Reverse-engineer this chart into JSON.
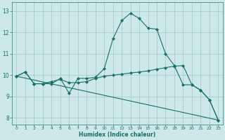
{
  "xlabel": "Humidex (Indice chaleur)",
  "bg_color": "#cce8e8",
  "grid_color": "#aacccc",
  "line_color": "#1a6e6a",
  "xlim": [
    -0.5,
    23.5
  ],
  "ylim": [
    7.7,
    13.4
  ],
  "xticks": [
    0,
    1,
    2,
    3,
    4,
    5,
    6,
    7,
    8,
    9,
    10,
    11,
    12,
    13,
    14,
    15,
    16,
    17,
    18,
    19,
    20,
    21,
    22,
    23
  ],
  "yticks": [
    8,
    9,
    10,
    11,
    12,
    13
  ],
  "line1_x": [
    0,
    1,
    2,
    3,
    4,
    5,
    6,
    7,
    8,
    9,
    10,
    11,
    12,
    13,
    14,
    15,
    16,
    17,
    18,
    19,
    20,
    21,
    22,
    23
  ],
  "line1_y": [
    9.95,
    10.15,
    9.6,
    9.6,
    9.6,
    9.85,
    9.15,
    9.85,
    9.85,
    9.9,
    10.3,
    11.7,
    12.55,
    12.9,
    12.65,
    12.2,
    12.15,
    11.0,
    10.45,
    9.55,
    9.55,
    9.3,
    8.85,
    7.9
  ],
  "line1_markers": true,
  "line2_x": [
    0,
    1,
    2,
    3,
    4,
    5,
    6,
    7,
    8,
    9,
    10,
    11,
    12,
    13,
    14,
    15,
    16,
    17,
    18,
    19,
    20,
    21,
    22,
    23
  ],
  "line2_y": [
    9.95,
    10.15,
    9.6,
    9.6,
    9.7,
    9.8,
    9.65,
    9.65,
    9.7,
    9.85,
    9.95,
    10.0,
    10.05,
    10.1,
    10.15,
    10.2,
    10.28,
    10.35,
    10.42,
    10.45,
    9.55,
    9.3,
    8.85,
    7.9
  ],
  "line2_markers": true,
  "line3_x": [
    0,
    23
  ],
  "line3_y": [
    9.95,
    7.9
  ],
  "line3_markers": false
}
